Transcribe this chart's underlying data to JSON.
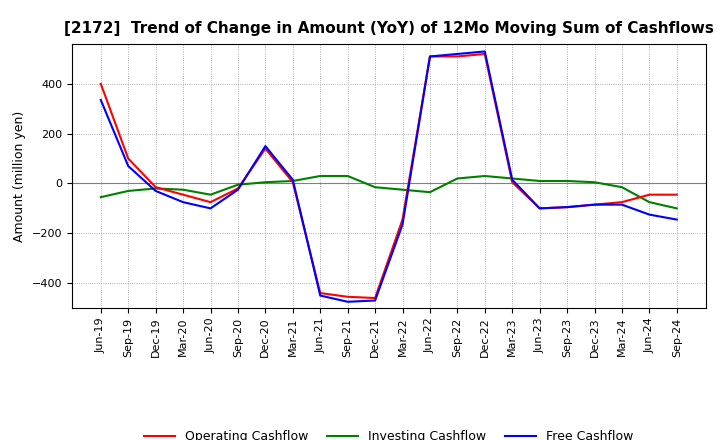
{
  "title": "[2172]  Trend of Change in Amount (YoY) of 12Mo Moving Sum of Cashflows",
  "ylabel": "Amount (million yen)",
  "x_labels": [
    "Jun-19",
    "Sep-19",
    "Dec-19",
    "Mar-20",
    "Jun-20",
    "Sep-20",
    "Dec-20",
    "Mar-21",
    "Jun-21",
    "Sep-21",
    "Dec-21",
    "Mar-22",
    "Jun-22",
    "Sep-22",
    "Dec-22",
    "Mar-23",
    "Jun-23",
    "Sep-23",
    "Dec-23",
    "Mar-24",
    "Jun-24",
    "Sep-24"
  ],
  "operating": [
    400,
    100,
    -15,
    -45,
    -75,
    -20,
    140,
    5,
    -440,
    -455,
    -460,
    -145,
    510,
    510,
    520,
    5,
    -100,
    -95,
    -85,
    -75,
    -45,
    -45
  ],
  "investing": [
    -55,
    -30,
    -20,
    -25,
    -45,
    -5,
    5,
    10,
    30,
    30,
    -15,
    -25,
    -35,
    20,
    30,
    20,
    10,
    10,
    5,
    -15,
    -75,
    -100
  ],
  "free": [
    335,
    70,
    -30,
    -75,
    -100,
    -25,
    150,
    15,
    -450,
    -475,
    -470,
    -165,
    510,
    520,
    530,
    15,
    -100,
    -95,
    -85,
    -85,
    -125,
    -145
  ],
  "ylim": [
    -500,
    560
  ],
  "yticks": [
    -400,
    -200,
    0,
    200,
    400
  ],
  "colors": {
    "operating": "#ff0000",
    "investing": "#008000",
    "free": "#0000ff"
  },
  "legend_labels": [
    "Operating Cashflow",
    "Investing Cashflow",
    "Free Cashflow"
  ],
  "bg_color": "#ffffff",
  "plot_bg_color": "#ffffff",
  "grid_color": "#999999",
  "linewidth": 1.5,
  "title_fontsize": 11,
  "ylabel_fontsize": 9,
  "tick_fontsize": 8,
  "legend_fontsize": 9
}
